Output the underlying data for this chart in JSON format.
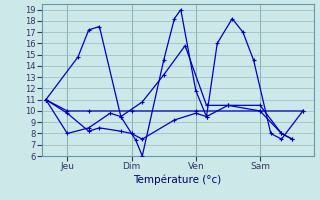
{
  "background_color": "#cce8e8",
  "grid_color": "#99bbbb",
  "line_color": "#0000cc",
  "xlabel": "Température (°c)",
  "ylim": [
    6,
    19.5
  ],
  "yticks": [
    6,
    7,
    8,
    9,
    10,
    11,
    12,
    13,
    14,
    15,
    16,
    17,
    18,
    19
  ],
  "day_positions": [
    1,
    4,
    7,
    10
  ],
  "day_labels": [
    "Jeu",
    "Dim",
    "Ven",
    "Sam"
  ],
  "xlim": [
    -0.2,
    12.5
  ],
  "series": [
    {
      "x": [
        0,
        1,
        2,
        4,
        7,
        10,
        12
      ],
      "y": [
        11,
        10,
        10,
        10,
        10,
        10,
        10
      ]
    },
    {
      "x": [
        0,
        1.5,
        2.0,
        2.5,
        3.5,
        4.2,
        4.5,
        5.5,
        6.0,
        6.3,
        7.0,
        7.5,
        8.0,
        8.7,
        9.2,
        9.7,
        10.5,
        11.0,
        12
      ],
      "y": [
        11,
        14.8,
        17.2,
        17.5,
        9.5,
        7.4,
        6.0,
        14.5,
        18.2,
        19.0,
        11.8,
        9.5,
        16.0,
        18.2,
        17.0,
        14.5,
        8.0,
        7.5,
        10
      ]
    },
    {
      "x": [
        0,
        1,
        2,
        2.5,
        3.5,
        4,
        4.5,
        6,
        7,
        7.5,
        8.5,
        10,
        11,
        11.5
      ],
      "y": [
        11,
        9.8,
        8.2,
        8.5,
        8.2,
        8.0,
        7.5,
        9.2,
        9.8,
        9.5,
        10.5,
        10.5,
        8.0,
        7.5
      ]
    },
    {
      "x": [
        0,
        1,
        2,
        3,
        3.5,
        4.5,
        5.5,
        6.5,
        7.5,
        8.5,
        10,
        11,
        11.5
      ],
      "y": [
        11,
        8.0,
        8.5,
        9.8,
        9.5,
        10.8,
        13.2,
        15.8,
        10.5,
        10.5,
        10.0,
        8.0,
        7.5
      ]
    }
  ]
}
